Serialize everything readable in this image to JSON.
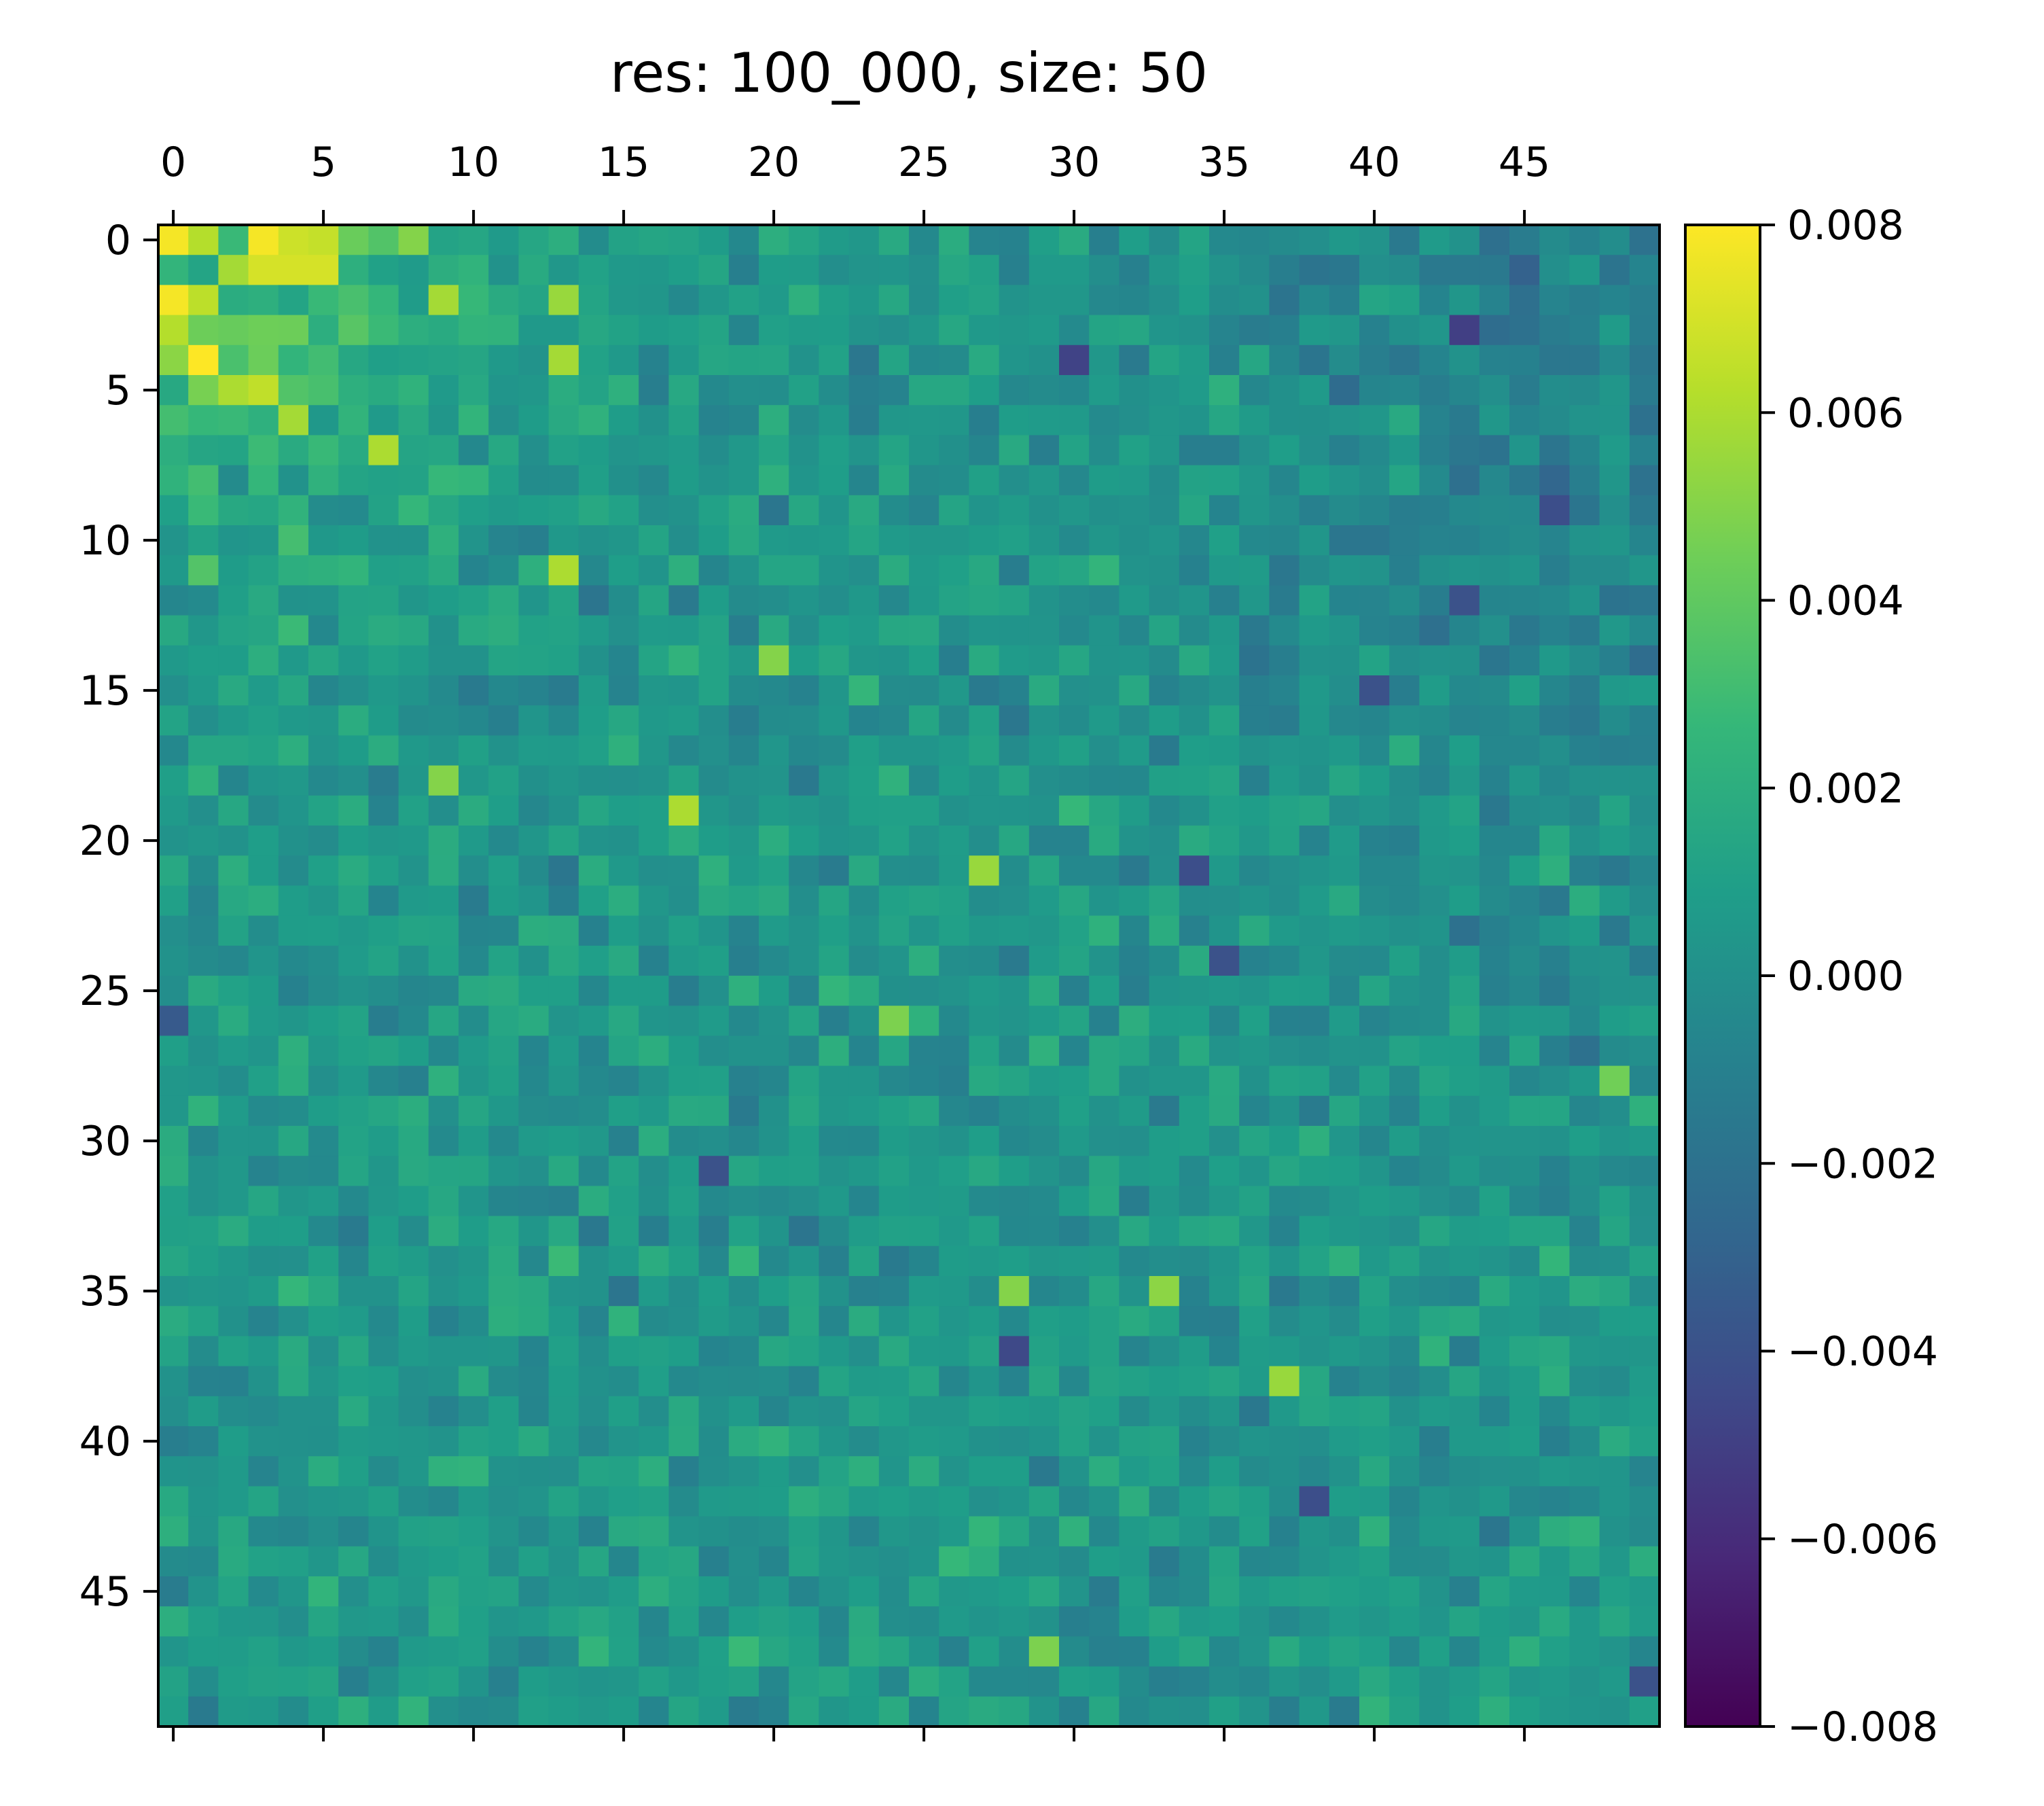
{
  "chart_data": {
    "type": "heatmap",
    "title": "res: 100_000, size: 50",
    "rows": 50,
    "cols": 50,
    "x_ticks": [
      "0",
      "5",
      "10",
      "15",
      "20",
      "25",
      "30",
      "35",
      "40",
      "45"
    ],
    "y_ticks": [
      "0",
      "5",
      "10",
      "15",
      "20",
      "25",
      "30",
      "35",
      "40",
      "45"
    ],
    "x_tick_values": [
      0,
      5,
      10,
      15,
      20,
      25,
      30,
      35,
      40,
      45
    ],
    "y_tick_values": [
      0,
      5,
      10,
      15,
      20,
      25,
      30,
      35,
      40,
      45
    ],
    "x_axis_position": "top",
    "colormap": "viridis",
    "value_range": [
      -0.008,
      0.008
    ],
    "colorbar": {
      "placement": "right",
      "ticks": [
        "0.008",
        "0.006",
        "0.004",
        "0.002",
        "0.000",
        "−0.002",
        "−0.004",
        "−0.006",
        "−0.008"
      ],
      "tick_values": [
        0.008,
        0.006,
        0.004,
        0.002,
        0.0,
        -0.002,
        -0.004,
        -0.006,
        -0.008
      ]
    },
    "value_model": {
      "background_mean": 0.0005,
      "background_spread": 0.0012,
      "far_right_bias": -0.0012,
      "hot_cells": [
        {
          "r": 0,
          "c": 0,
          "v": 0.0078
        },
        {
          "r": 0,
          "c": 1,
          "v": 0.0062
        },
        {
          "r": 0,
          "c": 3,
          "v": 0.0078
        },
        {
          "r": 0,
          "c": 4,
          "v": 0.0068
        },
        {
          "r": 0,
          "c": 5,
          "v": 0.0066
        },
        {
          "r": 1,
          "c": 2,
          "v": 0.0058
        },
        {
          "r": 1,
          "c": 3,
          "v": 0.007
        },
        {
          "r": 1,
          "c": 4,
          "v": 0.007
        },
        {
          "r": 1,
          "c": 5,
          "v": 0.007
        },
        {
          "r": 2,
          "c": 0,
          "v": 0.0078
        },
        {
          "r": 2,
          "c": 1,
          "v": 0.0064
        },
        {
          "r": 3,
          "c": 0,
          "v": 0.0062
        },
        {
          "r": 4,
          "c": 1,
          "v": 0.008
        },
        {
          "r": 5,
          "c": 2,
          "v": 0.006
        },
        {
          "r": 5,
          "c": 3,
          "v": 0.0065
        },
        {
          "r": 6,
          "c": 4,
          "v": 0.0058
        },
        {
          "r": 7,
          "c": 7,
          "v": 0.006
        },
        {
          "r": 11,
          "c": 13,
          "v": 0.006
        },
        {
          "r": 0,
          "c": 8,
          "v": 0.005
        },
        {
          "r": 2,
          "c": 9,
          "v": 0.0058
        },
        {
          "r": 2,
          "c": 13,
          "v": 0.0055
        },
        {
          "r": 4,
          "c": 13,
          "v": 0.0058
        },
        {
          "r": 19,
          "c": 17,
          "v": 0.006
        },
        {
          "r": 21,
          "c": 27,
          "v": 0.0055
        },
        {
          "r": 38,
          "c": 37,
          "v": 0.0055
        },
        {
          "r": 35,
          "c": 33,
          "v": 0.0052
        },
        {
          "r": 35,
          "c": 28,
          "v": 0.005
        },
        {
          "r": 26,
          "c": 24,
          "v": 0.0048
        },
        {
          "r": 18,
          "c": 9,
          "v": 0.005
        },
        {
          "r": 14,
          "c": 20,
          "v": 0.005
        },
        {
          "r": 47,
          "c": 29,
          "v": 0.0048
        },
        {
          "r": 28,
          "c": 48,
          "v": 0.0045
        }
      ],
      "cold_cells": [
        {
          "r": 3,
          "c": 43,
          "v": -0.005
        },
        {
          "r": 4,
          "c": 30,
          "v": -0.0048
        },
        {
          "r": 37,
          "c": 28,
          "v": -0.0045
        },
        {
          "r": 21,
          "c": 34,
          "v": -0.0042
        },
        {
          "r": 12,
          "c": 43,
          "v": -0.004
        },
        {
          "r": 9,
          "c": 46,
          "v": -0.0042
        },
        {
          "r": 31,
          "c": 18,
          "v": -0.004
        },
        {
          "r": 42,
          "c": 38,
          "v": -0.0042
        },
        {
          "r": 15,
          "c": 40,
          "v": -0.004
        },
        {
          "r": 24,
          "c": 35,
          "v": -0.004
        },
        {
          "r": 26,
          "c": 0,
          "v": -0.0035
        },
        {
          "r": 48,
          "c": 49,
          "v": -0.004
        }
      ]
    }
  }
}
